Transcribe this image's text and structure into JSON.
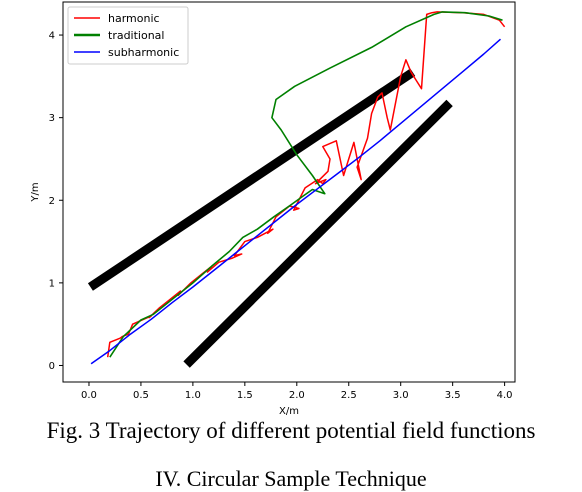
{
  "caption": "Fig. 3 Trajectory of different potential field functions",
  "section_heading": "IV.   Circular Sample Technique",
  "chart_data": {
    "type": "line",
    "title": "",
    "xlabel": "X/m",
    "ylabel": "Y/m",
    "xlim": [
      -0.25,
      4.1
    ],
    "ylim": [
      -0.2,
      4.4
    ],
    "xticks": [
      0.0,
      0.5,
      1.0,
      1.5,
      2.0,
      2.5,
      3.0,
      3.5,
      4.0
    ],
    "xtick_labels": [
      "0.0",
      "0.5",
      "1.0",
      "1.5",
      "2.0",
      "2.5",
      "3.0",
      "3.5",
      "4.0"
    ],
    "yticks": [
      0,
      1,
      2,
      3,
      4
    ],
    "ytick_labels": [
      "0",
      "1",
      "2",
      "3",
      "4"
    ],
    "grid": false,
    "legend_position": "top-left",
    "series": [
      {
        "name": "harmonic",
        "color": "#ff0000",
        "x": [
          0.18,
          0.2,
          0.3,
          0.32,
          0.38,
          0.42,
          0.6,
          0.58,
          0.68,
          0.78,
          0.88,
          0.86,
          0.98,
          1.08,
          1.18,
          1.14,
          1.25,
          1.38,
          1.47,
          1.4,
          1.5,
          1.62,
          1.77,
          1.72,
          1.8,
          1.93,
          2.02,
          1.97,
          2.08,
          2.2,
          2.25,
          2.28,
          2.18,
          2.3,
          2.32,
          2.25,
          2.38,
          2.45,
          2.55,
          2.62,
          2.58,
          2.68,
          2.72,
          2.78,
          2.82,
          2.87,
          2.9,
          3.0,
          3.05,
          3.1,
          3.15,
          3.2,
          3.25,
          3.3,
          3.35,
          3.6,
          3.8,
          3.95,
          4.0
        ],
        "y": [
          0.1,
          0.28,
          0.33,
          0.35,
          0.38,
          0.5,
          0.6,
          0.58,
          0.7,
          0.8,
          0.9,
          0.85,
          1.0,
          1.1,
          1.2,
          1.13,
          1.25,
          1.3,
          1.35,
          1.33,
          1.5,
          1.55,
          1.65,
          1.6,
          1.8,
          1.93,
          1.9,
          1.88,
          2.15,
          2.25,
          2.2,
          2.25,
          2.2,
          2.35,
          2.5,
          2.65,
          2.72,
          2.3,
          2.7,
          2.25,
          2.4,
          2.75,
          3.05,
          3.25,
          3.3,
          3.0,
          2.85,
          3.5,
          3.7,
          3.55,
          3.45,
          3.35,
          4.25,
          4.27,
          4.28,
          4.27,
          4.25,
          4.18,
          4.1
        ]
      },
      {
        "name": "traditional",
        "color": "#008000",
        "x": [
          0.2,
          0.33,
          0.5,
          0.62,
          0.8,
          1.0,
          1.18,
          1.35,
          1.48,
          1.62,
          1.78,
          1.95,
          2.06,
          2.15,
          2.27,
          2.15,
          2.0,
          1.85,
          1.76,
          1.8,
          1.98,
          2.32,
          2.72,
          3.05,
          3.32,
          3.4,
          3.62,
          3.85,
          3.98
        ],
        "y": [
          0.1,
          0.35,
          0.55,
          0.62,
          0.8,
          1.0,
          1.2,
          1.38,
          1.55,
          1.65,
          1.8,
          1.95,
          2.05,
          2.13,
          2.08,
          2.3,
          2.55,
          2.85,
          3.0,
          3.22,
          3.38,
          3.6,
          3.85,
          4.1,
          4.25,
          4.28,
          4.27,
          4.23,
          4.18
        ]
      },
      {
        "name": "subharmonic",
        "color": "#0000ff",
        "x": [
          0.02,
          0.2,
          0.4,
          0.6,
          0.8,
          1.0,
          1.2,
          1.4,
          1.6,
          1.8,
          2.0,
          2.2,
          2.4,
          2.6,
          2.8,
          3.0,
          3.2,
          3.4,
          3.6,
          3.8,
          3.96
        ],
        "y": [
          0.02,
          0.18,
          0.38,
          0.56,
          0.76,
          0.95,
          1.15,
          1.35,
          1.55,
          1.75,
          1.95,
          2.14,
          2.33,
          2.52,
          2.72,
          2.93,
          3.14,
          3.35,
          3.56,
          3.77,
          3.95
        ]
      }
    ],
    "obstacles": [
      {
        "color": "#000000",
        "x": [
          0.05,
          3.08
        ],
        "y": [
          0.98,
          3.52
        ]
      },
      {
        "color": "#000000",
        "x": [
          0.97,
          3.44
        ],
        "y": [
          0.05,
          3.14
        ]
      }
    ]
  }
}
